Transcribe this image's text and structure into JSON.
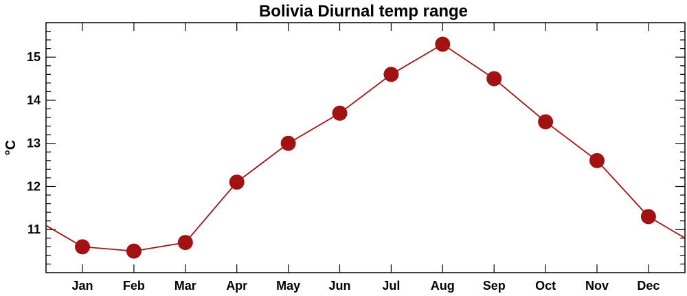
{
  "chart_data": {
    "type": "line",
    "title": "Bolivia Diurnal temp range",
    "xlabel": "",
    "ylabel": "°C",
    "categories": [
      "Jan",
      "Feb",
      "Mar",
      "Apr",
      "May",
      "Jun",
      "Jul",
      "Aug",
      "Sep",
      "Oct",
      "Nov",
      "Dec"
    ],
    "series": [
      {
        "values": [
          10.6,
          10.5,
          10.7,
          12.1,
          13.0,
          13.7,
          14.6,
          15.3,
          14.5,
          13.5,
          12.6,
          11.3
        ]
      }
    ],
    "ylim": [
      10.0,
      15.8
    ],
    "yticks": [
      11,
      12,
      13,
      14,
      15
    ],
    "yminor_step": 0.2,
    "line_extends_to_edges": true,
    "grid": false,
    "colors": {
      "line": "#a31212",
      "marker": "#a31212",
      "frame": "#000000"
    }
  }
}
